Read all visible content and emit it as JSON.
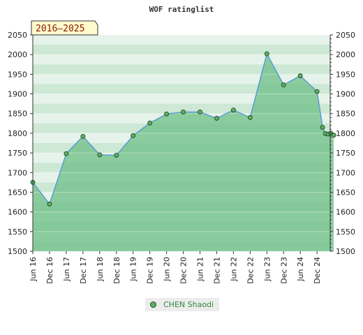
{
  "chart_data": {
    "type": "area",
    "title": "WOF ratinglist",
    "range_label": "2016–2025",
    "x": [
      "Jun 16",
      "Dec 16",
      "Jun 17",
      "Dec 17",
      "Jun 18",
      "Dec 18",
      "Jun 19",
      "Dec 19",
      "Jun 20",
      "Dec 20",
      "Jun 21",
      "Dec 21",
      "Jun 22",
      "Dec 22",
      "Jun 23",
      "Dec 23",
      "Jun 24",
      "Dec 24"
    ],
    "series": [
      {
        "name": "CHEN Shaodi",
        "points": [
          {
            "x": 0,
            "y": 1675
          },
          {
            "x": 1,
            "y": 1620
          },
          {
            "x": 2,
            "y": 1748
          },
          {
            "x": 3,
            "y": 1792
          },
          {
            "x": 4,
            "y": 1745
          },
          {
            "x": 5,
            "y": 1744
          },
          {
            "x": 6,
            "y": 1794
          },
          {
            "x": 7,
            "y": 1826
          },
          {
            "x": 8,
            "y": 1849
          },
          {
            "x": 9,
            "y": 1854
          },
          {
            "x": 10,
            "y": 1854
          },
          {
            "x": 11,
            "y": 1838
          },
          {
            "x": 12,
            "y": 1859
          },
          {
            "x": 13,
            "y": 1840
          },
          {
            "x": 14,
            "y": 2002
          },
          {
            "x": 15,
            "y": 1923
          },
          {
            "x": 16,
            "y": 1946
          },
          {
            "x": 17,
            "y": 1906
          },
          {
            "x": 17.33,
            "y": 1815
          },
          {
            "x": 17.5,
            "y": 1799
          },
          {
            "x": 17.67,
            "y": 1798
          },
          {
            "x": 17.83,
            "y": 1800
          },
          {
            "x": 18,
            "y": 1795
          }
        ]
      }
    ],
    "ylim": [
      1500,
      2050
    ],
    "yticks": [
      1500,
      1550,
      1600,
      1650,
      1700,
      1750,
      1800,
      1850,
      1900,
      1950,
      2000,
      2050
    ],
    "grid": true,
    "legend_position": "bottom"
  },
  "legend": {
    "label": "CHEN Shaodi"
  },
  "colors": {
    "line": "#5b9bd5",
    "fill": "#6cbf86",
    "marker": "#5fae63",
    "range_bg": "#fffacd"
  }
}
